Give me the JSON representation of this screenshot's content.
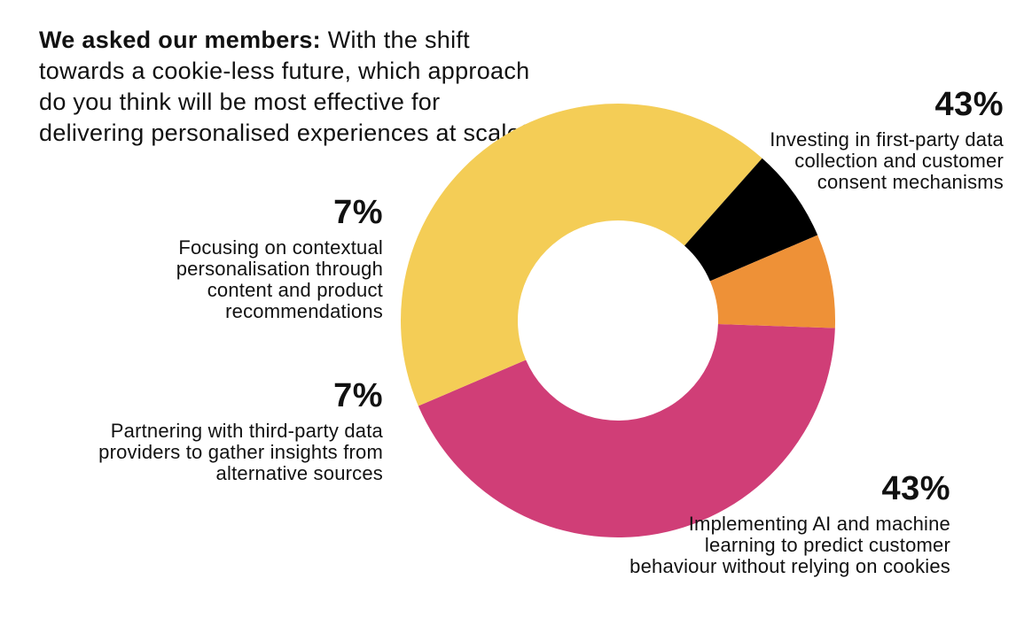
{
  "question": {
    "lead": "We asked our members:",
    "text": "With the shift towards a cookie-less future, which approach do you think will be most effective for delivering personalised experiences at scale?"
  },
  "chart_data": {
    "type": "pie",
    "subtype": "donut",
    "title": "We asked our members: With the shift towards a cookie-less future, which approach do you think will be most effective for delivering personalised experiences at scale?",
    "slices": [
      {
        "label": "Investing in first-party data collection and customer consent mechanisms",
        "value": 43,
        "display": "43%",
        "color": "#d03e77"
      },
      {
        "label": "Implementing AI and machine learning to predict customer behaviour without relying on cookies",
        "value": 43,
        "display": "43%",
        "color": "#f4cd56"
      },
      {
        "label": "Partnering with third-party data providers to gather insights from alternative sources",
        "value": 7,
        "display": "7%",
        "color": "#000000"
      },
      {
        "label": "Focusing on contextual personalisation through content and product recommendations",
        "value": 7,
        "display": "7%",
        "color": "#ee9137"
      }
    ],
    "start_angle_deg": 92,
    "direction": "clockwise",
    "legend": "none"
  }
}
